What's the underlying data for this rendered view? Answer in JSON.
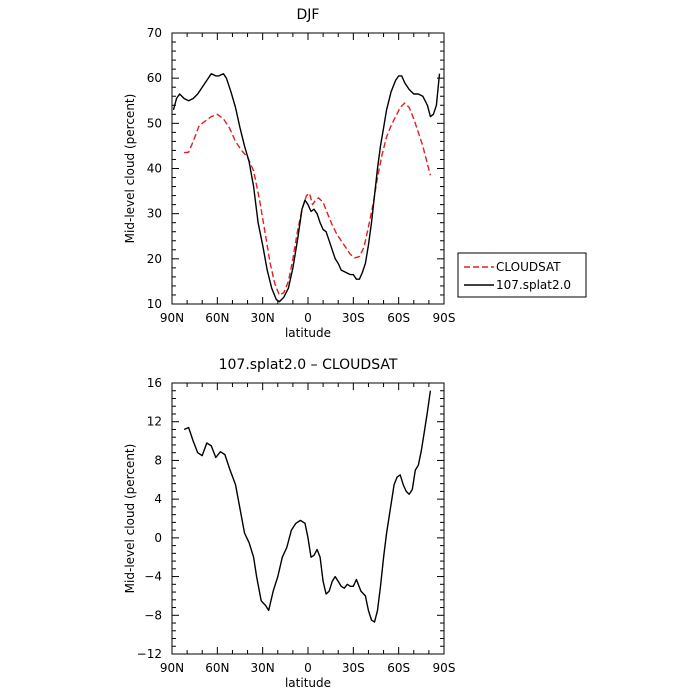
{
  "chart_data": [
    {
      "type": "line",
      "title": "DJF",
      "xlabel": "latitude",
      "ylabel": "Mid-level cloud (percent)",
      "xlim": [
        90,
        -90
      ],
      "ylim": [
        10,
        70
      ],
      "x_ticks": [
        90,
        60,
        30,
        0,
        -30,
        -60,
        -90
      ],
      "x_tick_labels": [
        "90N",
        "60N",
        "30N",
        "0",
        "30S",
        "60S",
        "90S"
      ],
      "y_ticks": [
        10,
        20,
        30,
        40,
        50,
        60,
        70
      ],
      "y_tick_labels": [
        "10",
        "20",
        "30",
        "40",
        "50",
        "60",
        "70"
      ],
      "legend_position": "right",
      "series": [
        {
          "name": "CLOUDSAT",
          "color": "#e02020",
          "dash": "dashed",
          "points": [
            [
              82,
              43.5
            ],
            [
              79,
              43.6
            ],
            [
              76,
              46
            ],
            [
              72,
              49.5
            ],
            [
              68,
              50.5
            ],
            [
              64,
              51.5
            ],
            [
              60,
              52
            ],
            [
              56,
              51
            ],
            [
              52,
              49
            ],
            [
              48,
              46
            ],
            [
              44,
              44
            ],
            [
              40,
              42.5
            ],
            [
              36,
              39.5
            ],
            [
              32,
              33
            ],
            [
              28,
              25
            ],
            [
              25,
              19
            ],
            [
              22,
              14.5
            ],
            [
              19,
              12
            ],
            [
              16,
              12.5
            ],
            [
              13,
              15
            ],
            [
              10,
              20
            ],
            [
              7,
              26
            ],
            [
              4,
              31
            ],
            [
              1,
              34
            ],
            [
              -1,
              34.5
            ],
            [
              -3,
              32
            ],
            [
              -5,
              33
            ],
            [
              -7,
              33.5
            ],
            [
              -10,
              32.5
            ],
            [
              -13,
              30
            ],
            [
              -16,
              27.5
            ],
            [
              -19,
              25.5
            ],
            [
              -22,
              24
            ],
            [
              -25,
              22.5
            ],
            [
              -28,
              21
            ],
            [
              -31,
              20.2
            ],
            [
              -34,
              20.5
            ],
            [
              -37,
              22.5
            ],
            [
              -40,
              27
            ],
            [
              -43,
              32
            ],
            [
              -46,
              38
            ],
            [
              -49,
              43
            ],
            [
              -52,
              47
            ],
            [
              -55,
              49.5
            ],
            [
              -58,
              51.5
            ],
            [
              -61,
              53.5
            ],
            [
              -64,
              54.5
            ],
            [
              -67,
              53.5
            ],
            [
              -70,
              51
            ],
            [
              -73,
              48
            ],
            [
              -76,
              45
            ],
            [
              -79,
              41
            ],
            [
              -81,
              38.5
            ]
          ]
        },
        {
          "name": "107.splat2.0",
          "color": "#000000",
          "dash": "solid",
          "points": [
            [
              89,
              53
            ],
            [
              87,
              55.5
            ],
            [
              85,
              56.5
            ],
            [
              82,
              55.5
            ],
            [
              79,
              55
            ],
            [
              76,
              55.5
            ],
            [
              73,
              56.5
            ],
            [
              70,
              58
            ],
            [
              67,
              59.5
            ],
            [
              64,
              61
            ],
            [
              61,
              60.5
            ],
            [
              59,
              60.5
            ],
            [
              56,
              61
            ],
            [
              54,
              60
            ],
            [
              51,
              57
            ],
            [
              48,
              53.5
            ],
            [
              45,
              49
            ],
            [
              42,
              45
            ],
            [
              39,
              41.5
            ],
            [
              36,
              36
            ],
            [
              33,
              28
            ],
            [
              30,
              23
            ],
            [
              27,
              17.5
            ],
            [
              24,
              13.5
            ],
            [
              21,
              11
            ],
            [
              19,
              10.5
            ],
            [
              16,
              11.5
            ],
            [
              13,
              13.5
            ],
            [
              10,
              18
            ],
            [
              7,
              24
            ],
            [
              4,
              31
            ],
            [
              2,
              33
            ],
            [
              0,
              32
            ],
            [
              -2,
              30.5
            ],
            [
              -4,
              31
            ],
            [
              -6,
              30
            ],
            [
              -8,
              28
            ],
            [
              -10,
              26.5
            ],
            [
              -12,
              26
            ],
            [
              -14,
              24
            ],
            [
              -16,
              22
            ],
            [
              -18,
              20
            ],
            [
              -20,
              19
            ],
            [
              -22,
              17.5
            ],
            [
              -25,
              17
            ],
            [
              -28,
              16.5
            ],
            [
              -30,
              16.5
            ],
            [
              -32,
              15.5
            ],
            [
              -34,
              15.5
            ],
            [
              -36,
              17
            ],
            [
              -38,
              19
            ],
            [
              -40,
              23
            ],
            [
              -42,
              28
            ],
            [
              -44,
              34
            ],
            [
              -46,
              40
            ],
            [
              -48,
              45
            ],
            [
              -50,
              49
            ],
            [
              -52,
              53
            ],
            [
              -55,
              57
            ],
            [
              -58,
              59.5
            ],
            [
              -60,
              60.5
            ],
            [
              -62,
              60.5
            ],
            [
              -64,
              59
            ],
            [
              -67,
              57.5
            ],
            [
              -70,
              56.5
            ],
            [
              -73,
              56.5
            ],
            [
              -76,
              56
            ],
            [
              -79,
              54
            ],
            [
              -81,
              51.5
            ],
            [
              -83,
              52
            ],
            [
              -85,
              54
            ],
            [
              -87,
              61
            ]
          ]
        }
      ]
    },
    {
      "type": "line",
      "title": "107.splat2.0 – CLOUDSAT",
      "xlabel": "latitude",
      "ylabel": "Mid-level cloud (percent)",
      "xlim": [
        90,
        -90
      ],
      "ylim": [
        -12,
        16
      ],
      "x_ticks": [
        90,
        60,
        30,
        0,
        -30,
        -60,
        -90
      ],
      "x_tick_labels": [
        "90N",
        "60N",
        "30N",
        "0",
        "30S",
        "60S",
        "90S"
      ],
      "y_ticks": [
        -12,
        -8,
        -4,
        0,
        4,
        8,
        12,
        16
      ],
      "y_tick_labels": [
        "−12",
        "−8",
        "−4",
        "0",
        "4",
        "8",
        "12",
        "16"
      ],
      "series": [
        {
          "color": "#000000",
          "dash": "solid",
          "points": [
            [
              82,
              11.2
            ],
            [
              79,
              11.4
            ],
            [
              76,
              10
            ],
            [
              73,
              8.8
            ],
            [
              70,
              8.5
            ],
            [
              67,
              9.8
            ],
            [
              64,
              9.5
            ],
            [
              61,
              8.3
            ],
            [
              58,
              8.9
            ],
            [
              55,
              8.6
            ],
            [
              52,
              7.2
            ],
            [
              48,
              5.5
            ],
            [
              45,
              3
            ],
            [
              42,
              0.5
            ],
            [
              39,
              -0.5
            ],
            [
              36,
              -2
            ],
            [
              34,
              -4
            ],
            [
              31,
              -6.5
            ],
            [
              28,
              -7
            ],
            [
              26,
              -7.5
            ],
            [
              23,
              -5.5
            ],
            [
              20,
              -4
            ],
            [
              17,
              -2
            ],
            [
              14,
              -1
            ],
            [
              11,
              0.8
            ],
            [
              8,
              1.5
            ],
            [
              5,
              1.8
            ],
            [
              2,
              1.5
            ],
            [
              0,
              0
            ],
            [
              -2,
              -2
            ],
            [
              -4,
              -1.8
            ],
            [
              -6,
              -1.2
            ],
            [
              -8,
              -2
            ],
            [
              -10,
              -4.5
            ],
            [
              -12,
              -5.8
            ],
            [
              -14,
              -5.5
            ],
            [
              -16,
              -4.5
            ],
            [
              -18,
              -4
            ],
            [
              -20,
              -4.5
            ],
            [
              -22,
              -5
            ],
            [
              -24,
              -5.2
            ],
            [
              -26,
              -4.8
            ],
            [
              -28,
              -5
            ],
            [
              -30,
              -5
            ],
            [
              -32,
              -4.3
            ],
            [
              -35,
              -5.5
            ],
            [
              -38,
              -6
            ],
            [
              -40,
              -7.5
            ],
            [
              -42,
              -8.5
            ],
            [
              -44,
              -8.7
            ],
            [
              -46,
              -7.5
            ],
            [
              -48,
              -5
            ],
            [
              -50,
              -2
            ],
            [
              -52,
              0.5
            ],
            [
              -55,
              3.5
            ],
            [
              -57,
              5.5
            ],
            [
              -59,
              6.3
            ],
            [
              -61,
              6.5
            ],
            [
              -63,
              5.5
            ],
            [
              -65,
              4.8
            ],
            [
              -67,
              4.5
            ],
            [
              -69,
              5
            ],
            [
              -71,
              7
            ],
            [
              -73,
              7.5
            ],
            [
              -75,
              9
            ],
            [
              -77,
              11
            ],
            [
              -79,
              13
            ],
            [
              -81,
              15.2
            ]
          ]
        }
      ]
    }
  ]
}
